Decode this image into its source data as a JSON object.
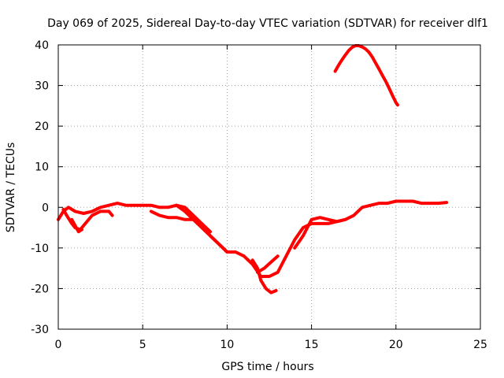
{
  "chart_data": {
    "type": "line",
    "title": "Day 069 of 2025, Sidereal Day-to-day VTEC variation (SDTVAR) for receiver dlf1",
    "xlabel": "GPS time / hours",
    "ylabel": "SDTVAR / TECUs",
    "xlim": [
      0,
      25
    ],
    "ylim": [
      -30,
      40
    ],
    "xticks": [
      0,
      5,
      10,
      15,
      20,
      25
    ],
    "yticks": [
      -30,
      -20,
      -10,
      0,
      10,
      20,
      30,
      40
    ],
    "grid": true,
    "series_color": "#ff0000",
    "series": [
      {
        "name": "trace-a",
        "x": [
          0,
          0.3,
          0.6,
          1.0,
          1.5,
          2.0,
          2.5,
          3.0,
          3.5,
          4.0,
          4.5,
          5.0,
          5.5,
          6.0,
          6.5,
          7.0,
          7.5,
          8.0,
          8.5,
          9.0,
          9.5,
          10.0,
          10.5,
          11.0,
          11.5,
          12.0,
          12.5,
          13.0,
          13.5,
          14.0,
          14.5,
          15.0,
          15.5,
          16.0,
          16.5,
          17.0,
          17.5,
          18.0,
          18.5,
          19.0,
          19.5,
          20.0,
          20.5,
          21.0,
          21.5,
          22.0,
          22.5,
          23.0
        ],
        "y": [
          -3,
          -1,
          0,
          -1,
          -1.5,
          -1,
          0,
          0.5,
          1,
          0.5,
          0.5,
          0.5,
          0.5,
          0,
          0,
          0.5,
          -1,
          -3,
          -5,
          -7,
          -9,
          -11,
          -11,
          -12,
          -14,
          -17,
          -17,
          -16,
          -12,
          -8,
          -5,
          -4,
          -4,
          -4,
          -3.5,
          -3,
          -2,
          0,
          0.5,
          1,
          1,
          1.5,
          1.5,
          1.5,
          1,
          1,
          1,
          1.2
        ]
      },
      {
        "name": "trace-b",
        "x": [
          0.3,
          0.5,
          0.8,
          1.0,
          1.3,
          1.6,
          2.0,
          2.5,
          3.0,
          3.2
        ],
        "y": [
          -0.5,
          -2,
          -4,
          -5,
          -5.5,
          -4,
          -2,
          -1,
          -1,
          -2
        ]
      },
      {
        "name": "trace-c",
        "x": [
          0.8,
          1.0,
          1.2,
          1.4
        ],
        "y": [
          -3,
          -4.5,
          -6,
          -5.5
        ]
      },
      {
        "name": "trace-d",
        "x": [
          5.5,
          6.0,
          6.5,
          7.0,
          7.5,
          8.0,
          8.5,
          9.0,
          9.5,
          10.0
        ],
        "y": [
          -1,
          -2,
          -2.5,
          -2.5,
          -3,
          -3,
          -4,
          -7,
          -9,
          -11
        ]
      },
      {
        "name": "trace-e",
        "x": [
          7.0,
          7.5,
          8.0,
          8.5,
          9.0
        ],
        "y": [
          0.5,
          0,
          -2,
          -4,
          -6
        ]
      },
      {
        "name": "trace-f",
        "x": [
          11.5,
          11.8,
          12.0,
          12.3,
          12.6,
          12.9
        ],
        "y": [
          -13,
          -15,
          -18,
          -20,
          -21,
          -20.5
        ]
      },
      {
        "name": "trace-g",
        "x": [
          11.8,
          12.2,
          12.6,
          13.0
        ],
        "y": [
          -16,
          -15,
          -13.5,
          -12
        ]
      },
      {
        "name": "trace-h",
        "x": [
          14.0,
          14.5,
          15.0,
          15.5,
          16.0,
          16.5,
          17.0
        ],
        "y": [
          -10,
          -7,
          -3,
          -2.5,
          -3,
          -3.5,
          -3
        ]
      },
      {
        "name": "trace-i",
        "x": [
          16.4,
          16.6,
          16.8,
          17.0,
          17.2,
          17.4,
          17.6,
          17.8,
          18.0,
          18.2,
          18.4,
          18.6,
          18.8,
          19.0,
          19.2,
          19.4,
          19.6,
          19.8,
          20.0,
          20.1
        ],
        "y": [
          33.5,
          35,
          36.3,
          37.5,
          38.6,
          39.4,
          39.8,
          39.8,
          39.5,
          39,
          38.2,
          37,
          35.5,
          34,
          32.5,
          31,
          29.3,
          27.5,
          25.8,
          25.2
        ]
      }
    ]
  }
}
